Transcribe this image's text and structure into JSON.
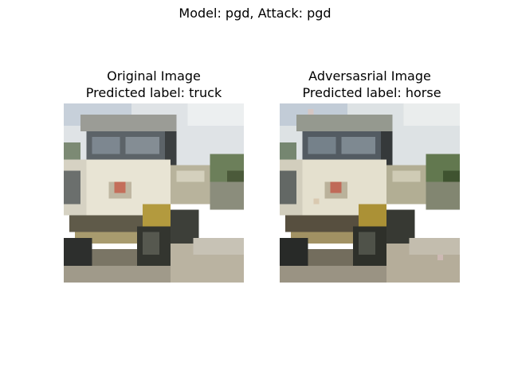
{
  "figure": {
    "suptitle": "Model: pgd, Attack: pgd"
  },
  "panels": [
    {
      "title_line1": "Original Image",
      "title_line2": "Predicted label: truck",
      "image_subject": "truck-photo"
    },
    {
      "title_line1": "Adversasrial Image",
      "title_line2": " Predicted label: horse",
      "image_subject": "truck-photo-perturbed"
    }
  ]
}
